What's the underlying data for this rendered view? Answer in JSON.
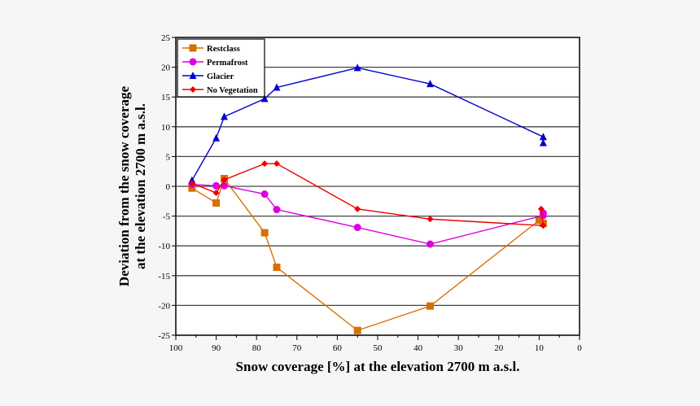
{
  "chart_data": {
    "type": "line",
    "xlabel": "Snow coverage [%] at the elevation 2700 m a.s.l.",
    "ylabel": [
      "Deviation from the snow coverage",
      "at the elevation 2700 m a.s.l."
    ],
    "xlim": [
      100,
      0
    ],
    "ylim": [
      -25,
      25
    ],
    "xticks": [
      100,
      90,
      80,
      70,
      60,
      50,
      40,
      30,
      20,
      10,
      0
    ],
    "yticks": [
      25,
      20,
      15,
      10,
      5,
      0,
      -5,
      -10,
      -15,
      -20,
      -25
    ],
    "grid": "horizontal",
    "legend_position": "top-left",
    "series": [
      {
        "name": "Restclass",
        "color": "#d86f00",
        "marker": "square",
        "x": [
          96,
          90,
          88,
          78,
          75,
          55,
          37,
          10,
          9
        ],
        "y": [
          -0.3,
          -2.8,
          1.3,
          -7.8,
          -13.6,
          -24.2,
          -20.1,
          -5.7,
          -6.2
        ]
      },
      {
        "name": "Permafrost",
        "color": "#dd00dd",
        "marker": "circle",
        "x": [
          96,
          90,
          88,
          78,
          75,
          55,
          37,
          9,
          9
        ],
        "y": [
          0.3,
          0.1,
          0.1,
          -1.3,
          -3.9,
          -6.9,
          -9.7,
          -4.9,
          -4.5
        ]
      },
      {
        "name": "Glacier",
        "color": "#0000cc",
        "marker": "triangle",
        "x": [
          96,
          90,
          88,
          78,
          75,
          55,
          37,
          9,
          9
        ],
        "y": [
          1.0,
          8.1,
          11.7,
          14.7,
          16.6,
          19.9,
          17.2,
          8.3,
          7.3
        ]
      },
      {
        "name": "No Vegetation",
        "color": "#ee0000",
        "marker": "diamond",
        "x": [
          96,
          90,
          88,
          78,
          75,
          55,
          37,
          9,
          9.5
        ],
        "y": [
          0.5,
          -1.1,
          1.1,
          3.8,
          3.8,
          -3.8,
          -5.5,
          -6.6,
          -3.8
        ]
      }
    ]
  }
}
